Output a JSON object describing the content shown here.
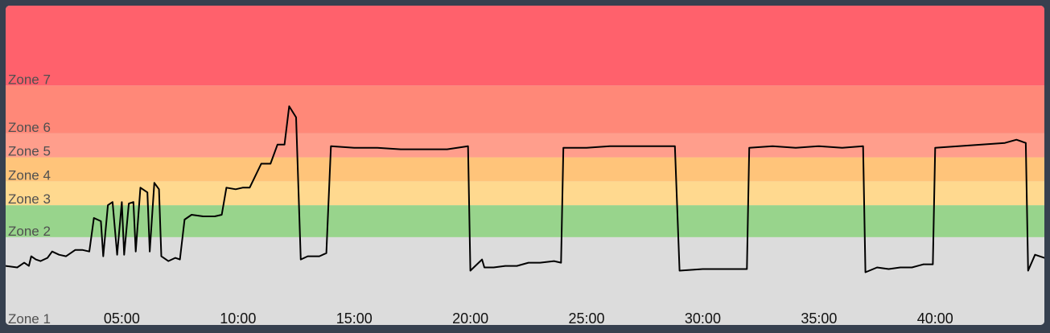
{
  "chart_data": {
    "type": "line",
    "xlabel": "",
    "ylabel": "",
    "x_tick_labels": [
      "05:00",
      "10:00",
      "15:00",
      "20:00",
      "25:00",
      "30:00",
      "35:00",
      "40:00"
    ],
    "x_tick_values_min": [
      5,
      10,
      15,
      20,
      25,
      30,
      35,
      40
    ],
    "xlim_min": [
      0,
      44.7
    ],
    "zones": [
      {
        "name": "Zone 1",
        "from": 0,
        "to": 55,
        "color": "#dcdcdc"
      },
      {
        "name": "Zone 2",
        "from": 55,
        "to": 75,
        "color": "#98d48c"
      },
      {
        "name": "Zone 3",
        "from": 75,
        "to": 90,
        "color": "#ffd98f"
      },
      {
        "name": "Zone 4",
        "from": 90,
        "to": 105,
        "color": "#ffc47a"
      },
      {
        "name": "Zone 5",
        "from": 105,
        "to": 120,
        "color": "#ff9e8c"
      },
      {
        "name": "Zone 6",
        "from": 120,
        "to": 150,
        "color": "#ff8878"
      },
      {
        "name": "Zone 7",
        "from": 150,
        "to": 200,
        "color": "#ff616c"
      }
    ],
    "ylim": [
      0,
      200
    ],
    "series": [
      {
        "color": "#000000",
        "points": [
          [
            0.0,
            37
          ],
          [
            0.5,
            36
          ],
          [
            0.8,
            39
          ],
          [
            1.0,
            37
          ],
          [
            1.1,
            43
          ],
          [
            1.3,
            41
          ],
          [
            1.5,
            40
          ],
          [
            1.8,
            42
          ],
          [
            2.0,
            46
          ],
          [
            2.3,
            44
          ],
          [
            2.6,
            43
          ],
          [
            3.0,
            47
          ],
          [
            3.3,
            47
          ],
          [
            3.6,
            46
          ],
          [
            3.8,
            67
          ],
          [
            4.1,
            65
          ],
          [
            4.2,
            43
          ],
          [
            4.4,
            75
          ],
          [
            4.6,
            77
          ],
          [
            4.8,
            44
          ],
          [
            5.0,
            77
          ],
          [
            5.1,
            44
          ],
          [
            5.3,
            76
          ],
          [
            5.5,
            77
          ],
          [
            5.6,
            46
          ],
          [
            5.8,
            86
          ],
          [
            6.1,
            83
          ],
          [
            6.2,
            46
          ],
          [
            6.4,
            89
          ],
          [
            6.6,
            85
          ],
          [
            6.7,
            43
          ],
          [
            7.0,
            40
          ],
          [
            7.3,
            42
          ],
          [
            7.5,
            41
          ],
          [
            7.7,
            66
          ],
          [
            8.0,
            69
          ],
          [
            8.5,
            68
          ],
          [
            9.0,
            68
          ],
          [
            9.3,
            69
          ],
          [
            9.5,
            86
          ],
          [
            9.9,
            85
          ],
          [
            10.2,
            86
          ],
          [
            10.5,
            86
          ],
          [
            11.0,
            101
          ],
          [
            11.4,
            101
          ],
          [
            11.7,
            113
          ],
          [
            12.0,
            113
          ],
          [
            12.2,
            137
          ],
          [
            12.5,
            130
          ],
          [
            12.7,
            41
          ],
          [
            13.0,
            43
          ],
          [
            13.5,
            43
          ],
          [
            13.8,
            45
          ],
          [
            14.0,
            112
          ],
          [
            15.0,
            111
          ],
          [
            16.0,
            111
          ],
          [
            17.0,
            110
          ],
          [
            18.0,
            110
          ],
          [
            19.0,
            110
          ],
          [
            19.9,
            112
          ],
          [
            20.0,
            34
          ],
          [
            20.5,
            41
          ],
          [
            20.6,
            36
          ],
          [
            21.0,
            36
          ],
          [
            21.5,
            37
          ],
          [
            22.0,
            37
          ],
          [
            22.5,
            39
          ],
          [
            23.0,
            39
          ],
          [
            23.6,
            40
          ],
          [
            23.9,
            39
          ],
          [
            24.0,
            111
          ],
          [
            25.0,
            111
          ],
          [
            26.0,
            112
          ],
          [
            27.0,
            112
          ],
          [
            28.0,
            112
          ],
          [
            28.8,
            112
          ],
          [
            29.0,
            34
          ],
          [
            30.0,
            35
          ],
          [
            31.0,
            35
          ],
          [
            31.9,
            35
          ],
          [
            32.0,
            111
          ],
          [
            33.0,
            112
          ],
          [
            34.0,
            111
          ],
          [
            35.0,
            112
          ],
          [
            36.0,
            111
          ],
          [
            36.9,
            112
          ],
          [
            37.0,
            33
          ],
          [
            37.5,
            36
          ],
          [
            38.0,
            35
          ],
          [
            38.5,
            36
          ],
          [
            39.0,
            36
          ],
          [
            39.5,
            38
          ],
          [
            39.9,
            38
          ],
          [
            40.0,
            111
          ],
          [
            41.0,
            112
          ],
          [
            42.0,
            113
          ],
          [
            43.0,
            114
          ],
          [
            43.5,
            116
          ],
          [
            43.9,
            114
          ],
          [
            44.0,
            34
          ],
          [
            44.3,
            44
          ],
          [
            44.7,
            42
          ]
        ]
      }
    ]
  }
}
